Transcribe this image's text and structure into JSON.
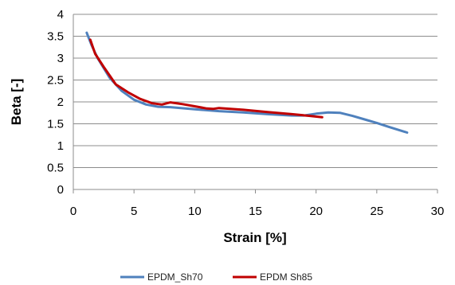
{
  "chart_data": {
    "type": "line",
    "xlabel": "Strain [%]",
    "ylabel": "Beta [-]",
    "xlim": [
      0,
      30
    ],
    "ylim": [
      0,
      4
    ],
    "x_ticks": [
      "0",
      "5",
      "10",
      "15",
      "20",
      "25",
      "30"
    ],
    "y_ticks": [
      "0",
      "0.5",
      "1",
      "1.5",
      "2",
      "2.5",
      "3",
      "3.5",
      "4"
    ],
    "grid": "horizontal",
    "legend_position": "bottom",
    "series": [
      {
        "name": "EPDM_Sh70",
        "color": "#4f81bd",
        "points": [
          [
            1.1,
            3.58
          ],
          [
            1.5,
            3.3
          ],
          [
            2.0,
            3.0
          ],
          [
            3.0,
            2.55
          ],
          [
            4.0,
            2.25
          ],
          [
            5.0,
            2.05
          ],
          [
            6.0,
            1.94
          ],
          [
            7.0,
            1.89
          ],
          [
            8.0,
            1.88
          ],
          [
            10.0,
            1.83
          ],
          [
            12.0,
            1.79
          ],
          [
            14.0,
            1.76
          ],
          [
            16.0,
            1.72
          ],
          [
            18.0,
            1.69
          ],
          [
            19.0,
            1.69
          ],
          [
            20.0,
            1.73
          ],
          [
            21.0,
            1.76
          ],
          [
            22.0,
            1.75
          ],
          [
            23.0,
            1.68
          ],
          [
            24.0,
            1.6
          ],
          [
            25.0,
            1.52
          ],
          [
            26.0,
            1.43
          ],
          [
            27.5,
            1.3
          ]
        ]
      },
      {
        "name": "EPDM Sh85",
        "color": "#c00000",
        "points": [
          [
            1.4,
            3.42
          ],
          [
            1.8,
            3.1
          ],
          [
            2.5,
            2.8
          ],
          [
            3.0,
            2.6
          ],
          [
            3.5,
            2.4
          ],
          [
            4.5,
            2.22
          ],
          [
            5.5,
            2.07
          ],
          [
            6.5,
            1.97
          ],
          [
            7.3,
            1.94
          ],
          [
            8.0,
            1.99
          ],
          [
            9.0,
            1.95
          ],
          [
            10.0,
            1.9
          ],
          [
            11.0,
            1.85
          ],
          [
            11.5,
            1.84
          ],
          [
            12.0,
            1.86
          ],
          [
            14.0,
            1.82
          ],
          [
            16.0,
            1.77
          ],
          [
            18.0,
            1.72
          ],
          [
            19.5,
            1.68
          ],
          [
            20.5,
            1.65
          ]
        ]
      }
    ]
  }
}
